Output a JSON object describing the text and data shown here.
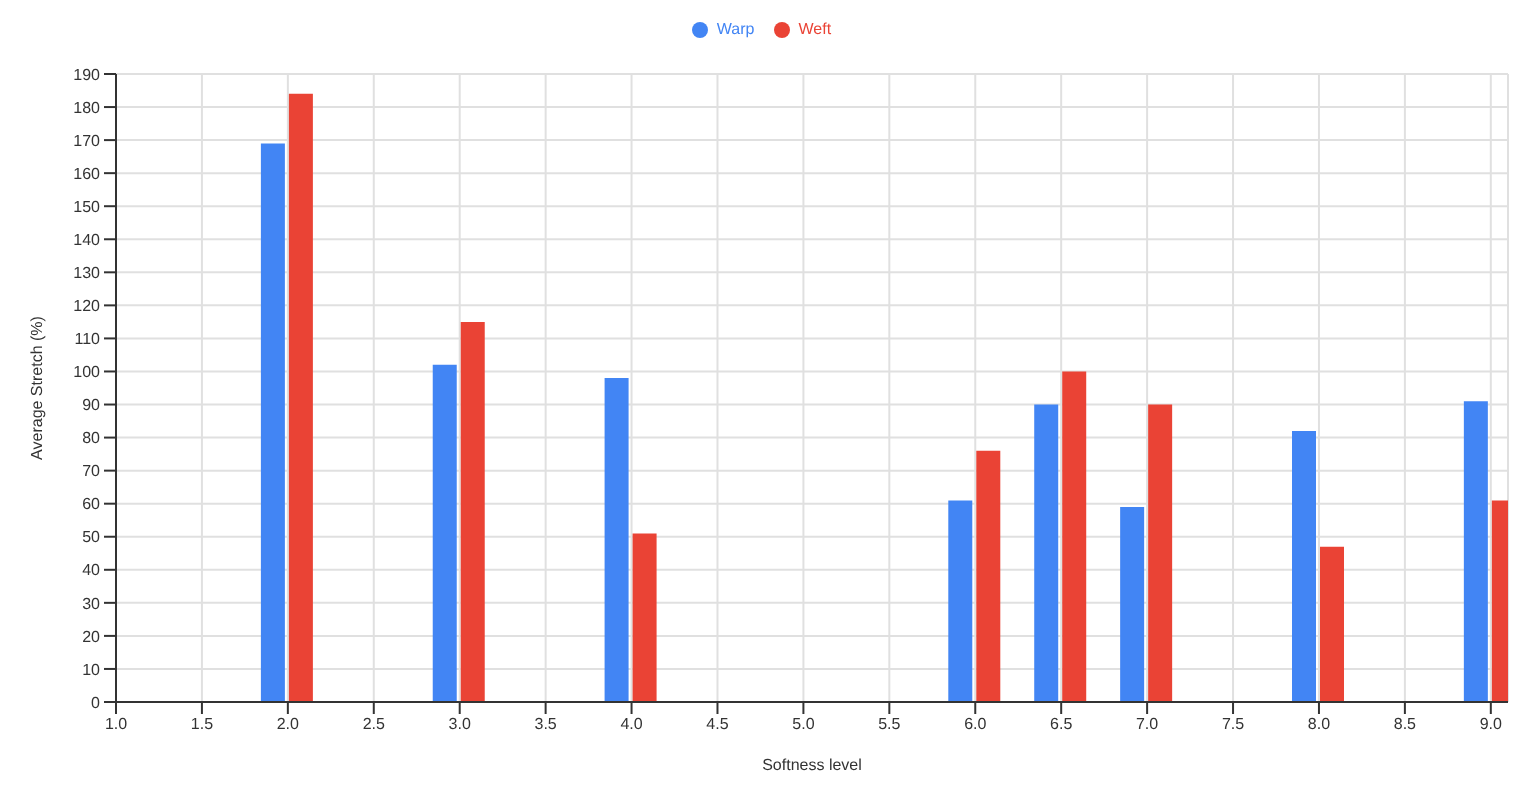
{
  "chart_data": {
    "type": "bar",
    "xlabel": "Softness level",
    "ylabel": "Average Stretch (%)",
    "x": [
      2.0,
      3.0,
      4.0,
      6.0,
      6.5,
      7.0,
      8.0,
      9.0
    ],
    "series": [
      {
        "name": "Warp",
        "color": "#4285f4",
        "values": [
          169,
          102,
          98,
          61,
          90,
          59,
          82,
          91
        ]
      },
      {
        "name": "Weft",
        "color": "#ea4335",
        "values": [
          184,
          115,
          51,
          76,
          100,
          90,
          47,
          61
        ]
      }
    ],
    "xlim": [
      1.0,
      9.1
    ],
    "xticks": [
      {
        "value": 1,
        "label": "1.0"
      },
      {
        "value": 1.5,
        "label": "1.5"
      },
      {
        "value": 2,
        "label": "2.0"
      },
      {
        "value": 2.5,
        "label": "2.5"
      },
      {
        "value": 3,
        "label": "3.0"
      },
      {
        "value": 3.5,
        "label": "3.5"
      },
      {
        "value": 4,
        "label": "4.0"
      },
      {
        "value": 4.5,
        "label": "4.5"
      },
      {
        "value": 5,
        "label": "5.0"
      },
      {
        "value": 5.5,
        "label": "5.5"
      },
      {
        "value": 6,
        "label": "6.0"
      },
      {
        "value": 6.5,
        "label": "6.5"
      },
      {
        "value": 7,
        "label": "7.0"
      },
      {
        "value": 7.5,
        "label": "7.5"
      },
      {
        "value": 8,
        "label": "8.0"
      },
      {
        "value": 8.5,
        "label": "8.5"
      },
      {
        "value": 9,
        "label": "9.0"
      }
    ],
    "ylim": [
      0,
      190
    ],
    "yticks": [
      0,
      10,
      20,
      30,
      40,
      50,
      60,
      70,
      80,
      90,
      100,
      110,
      120,
      130,
      140,
      150,
      160,
      170,
      180,
      190
    ],
    "grid": true,
    "legend": "top"
  }
}
